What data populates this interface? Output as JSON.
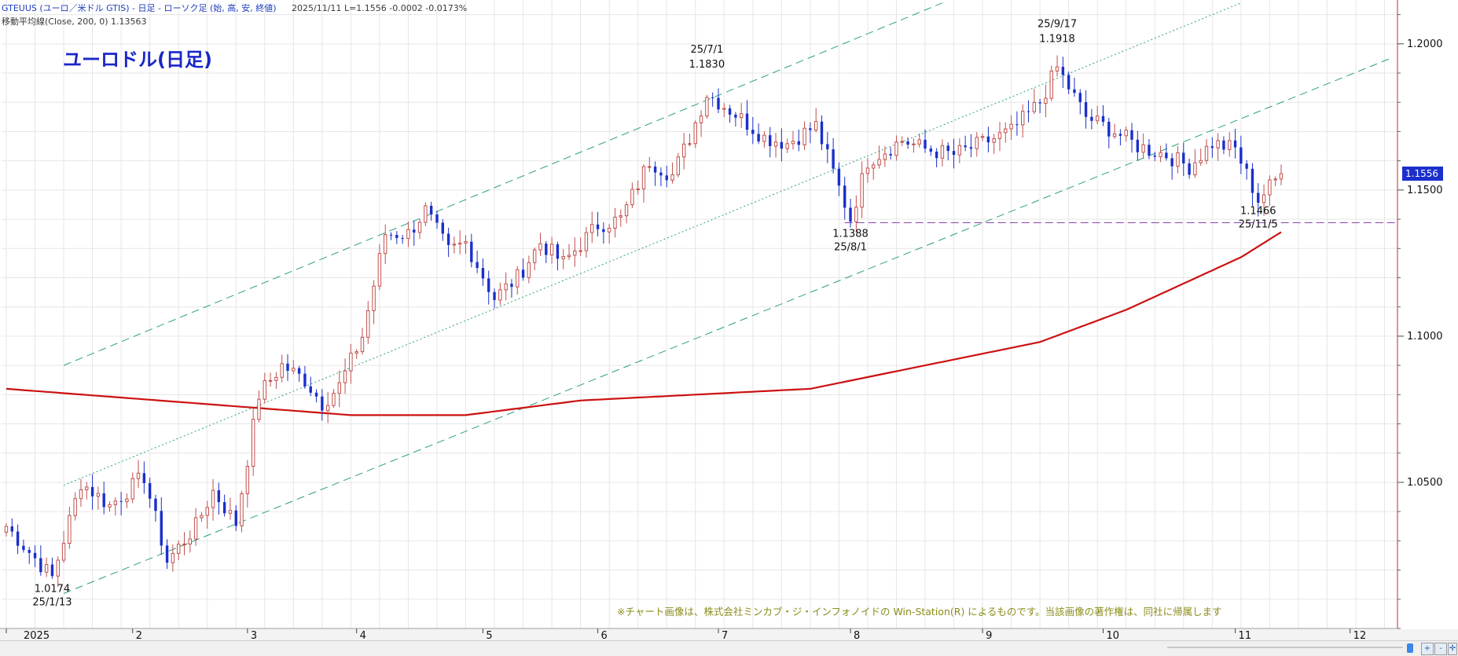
{
  "header": {
    "line1": "GTEUUS (ユーロ／米ドル GTIS) - 日足 - ローソク足 (始, 高, 安, 終値)",
    "date": "2025/11/11",
    "last": "L=1.1556",
    "change": "-0.0002",
    "change_pct": "-0.0173%",
    "line2_label": "移動平均線(Close, 200, 0)",
    "line2_value": "1.13563"
  },
  "title": "ユーロドル(日足)",
  "copyright": "※チャート画像は、株式会社ミンカブ・ジ・インフォノイドの Win-Station(R) によるものです。当該画像の著作権は、同社に帰属します",
  "chart_data": {
    "type": "candlestick",
    "x_ticks": [
      "2025",
      "2",
      "3",
      "4",
      "5",
      "6",
      "7",
      "8",
      "9",
      "10",
      "11",
      "12"
    ],
    "y_ticks": [
      "1.0500",
      "1.1000",
      "1.1500",
      "1.2000"
    ],
    "ylim": [
      1.0,
      1.215
    ],
    "last_price": "1.1556",
    "moving_average_label": "移動平均線(Close, 200, 0)",
    "moving_average_value": 1.13563,
    "annotations": [
      {
        "price": "1.0174",
        "date": "25/1/13"
      },
      {
        "price": "1.1830",
        "date": "25/7/1"
      },
      {
        "price": "1.1388",
        "date": "25/8/1"
      },
      {
        "price": "1.1918",
        "date": "25/9/17"
      },
      {
        "price": "1.1466",
        "date": "25/11/5"
      }
    ],
    "support_line": 1.1388,
    "trading_days": 222,
    "month_start_days": [
      0,
      22,
      42,
      61,
      83,
      103,
      124,
      147,
      170,
      191,
      214,
      234
    ],
    "swing_points": [
      [
        0,
        1.035
      ],
      [
        8,
        1.0174
      ],
      [
        13,
        1.05
      ],
      [
        18,
        1.042
      ],
      [
        24,
        1.052
      ],
      [
        28,
        1.023
      ],
      [
        33,
        1.035
      ],
      [
        36,
        1.047
      ],
      [
        40,
        1.036
      ],
      [
        44,
        1.08
      ],
      [
        48,
        1.09
      ],
      [
        52,
        1.085
      ],
      [
        55,
        1.077
      ],
      [
        58,
        1.083
      ],
      [
        62,
        1.1
      ],
      [
        66,
        1.135
      ],
      [
        70,
        1.135
      ],
      [
        73,
        1.143
      ],
      [
        77,
        1.129
      ],
      [
        80,
        1.132
      ],
      [
        85,
        1.113
      ],
      [
        89,
        1.12
      ],
      [
        93,
        1.132
      ],
      [
        97,
        1.125
      ],
      [
        103,
        1.138
      ],
      [
        107,
        1.14
      ],
      [
        112,
        1.16
      ],
      [
        116,
        1.155
      ],
      [
        119,
        1.168
      ],
      [
        122,
        1.183
      ],
      [
        127,
        1.176
      ],
      [
        132,
        1.168
      ],
      [
        136,
        1.166
      ],
      [
        141,
        1.172
      ],
      [
        147,
        1.14
      ],
      [
        150,
        1.16
      ],
      [
        156,
        1.167
      ],
      [
        160,
        1.164
      ],
      [
        165,
        1.162
      ],
      [
        170,
        1.166
      ],
      [
        175,
        1.17
      ],
      [
        180,
        1.18
      ],
      [
        183,
        1.1918
      ],
      [
        188,
        1.175
      ],
      [
        193,
        1.17
      ],
      [
        197,
        1.165
      ],
      [
        202,
        1.162
      ],
      [
        206,
        1.158
      ],
      [
        210,
        1.166
      ],
      [
        214,
        1.164
      ],
      [
        218,
        1.1466
      ],
      [
        222,
        1.1556
      ]
    ],
    "moving_average": [
      [
        0,
        1.082
      ],
      [
        20,
        1.079
      ],
      [
        40,
        1.076
      ],
      [
        60,
        1.073
      ],
      [
        80,
        1.073
      ],
      [
        100,
        1.078
      ],
      [
        120,
        1.08
      ],
      [
        140,
        1.082
      ],
      [
        160,
        1.09
      ],
      [
        180,
        1.098
      ],
      [
        195,
        1.109
      ],
      [
        205,
        1.118
      ],
      [
        215,
        1.127
      ],
      [
        222,
        1.1356
      ]
    ],
    "channel_lines": [
      {
        "style": "dash",
        "from": [
          10,
          1.09
        ],
        "to": [
          163,
          1.214
        ]
      },
      {
        "style": "dot",
        "from": [
          10,
          1.049
        ],
        "to": [
          215,
          1.214
        ]
      },
      {
        "style": "dash",
        "from": [
          10,
          1.012
        ],
        "to": [
          241,
          1.195
        ]
      }
    ],
    "colors": {
      "up": "#c0504d",
      "down": "#1a2fcb",
      "ma": "#cc1111",
      "channel": "#2ea07a",
      "support": "#8844aa",
      "grid": "#e6e6e6",
      "price_box": "#1a2fcb"
    }
  }
}
